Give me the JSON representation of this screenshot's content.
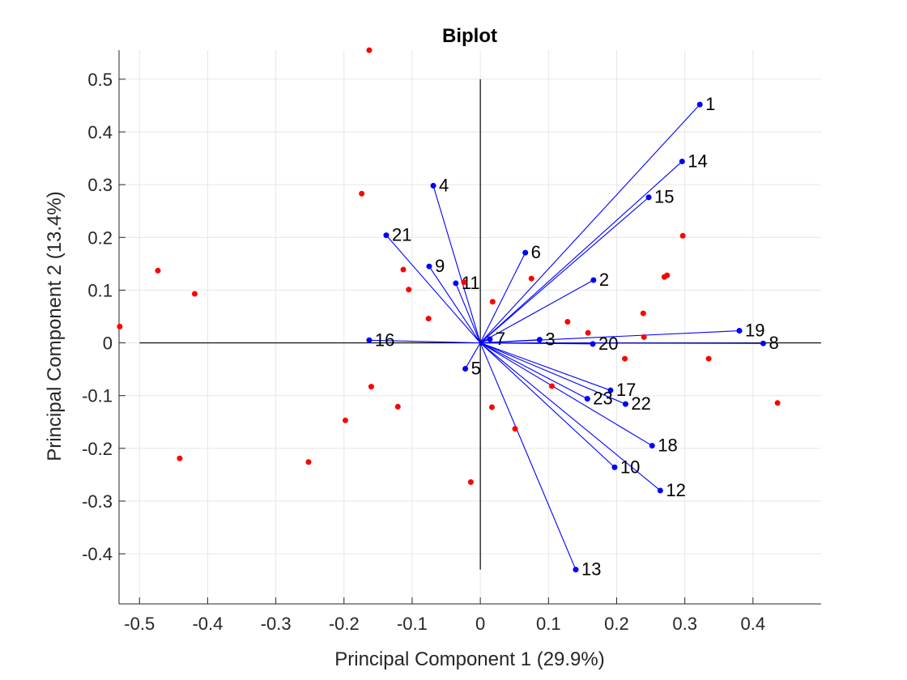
{
  "chart_data": {
    "type": "scatter",
    "title": "Biplot",
    "xlabel": "Principal Component 1 (29.9%)",
    "ylabel": "Principal Component 2 (13.4%)",
    "xlim": [
      -0.53,
      0.5
    ],
    "ylim": [
      -0.495,
      0.555
    ],
    "xticks": [
      -0.5,
      -0.4,
      -0.3,
      -0.2,
      -0.1,
      0,
      0.1,
      0.2,
      0.3,
      0.4
    ],
    "yticks": [
      -0.4,
      -0.3,
      -0.2,
      -0.1,
      0,
      0.1,
      0.2,
      0.3,
      0.4,
      0.5
    ],
    "xtick_labels": [
      "-0.5",
      "-0.4",
      "-0.3",
      "-0.2",
      "-0.1",
      "0",
      "0.1",
      "0.2",
      "0.3",
      "0.4"
    ],
    "ytick_labels": [
      "-0.4",
      "-0.3",
      "-0.2",
      "-0.1",
      "0",
      "0.1",
      "0.2",
      "0.3",
      "0.4",
      "0.5"
    ],
    "grid": true,
    "axis_lines": {
      "x": [
        -0.5,
        0.5
      ],
      "y": [
        -0.43,
        0.5
      ]
    },
    "loadings": [
      {
        "label": "1",
        "x": 0.322,
        "y": 0.452
      },
      {
        "label": "2",
        "x": 0.166,
        "y": 0.119
      },
      {
        "label": "3",
        "x": 0.087,
        "y": 0.006
      },
      {
        "label": "4",
        "x": -0.069,
        "y": 0.298
      },
      {
        "label": "5",
        "x": -0.022,
        "y": -0.049
      },
      {
        "label": "6",
        "x": 0.066,
        "y": 0.171
      },
      {
        "label": "7",
        "x": 0.014,
        "y": 0.007
      },
      {
        "label": "8",
        "x": 0.415,
        "y": -0.001
      },
      {
        "label": "9",
        "x": -0.075,
        "y": 0.145
      },
      {
        "label": "10",
        "x": 0.197,
        "y": -0.236
      },
      {
        "label": "11",
        "x": -0.036,
        "y": 0.113
      },
      {
        "label": "12",
        "x": 0.264,
        "y": -0.28
      },
      {
        "label": "13",
        "x": 0.14,
        "y": -0.43
      },
      {
        "label": "14",
        "x": 0.296,
        "y": 0.344
      },
      {
        "label": "15",
        "x": 0.247,
        "y": 0.276
      },
      {
        "label": "16",
        "x": -0.163,
        "y": 0.005
      },
      {
        "label": "17",
        "x": 0.191,
        "y": -0.09
      },
      {
        "label": "18",
        "x": 0.252,
        "y": -0.195
      },
      {
        "label": "19",
        "x": 0.38,
        "y": 0.023
      },
      {
        "label": "20",
        "x": 0.165,
        "y": -0.002
      },
      {
        "label": "21",
        "x": -0.138,
        "y": 0.204
      },
      {
        "label": "22",
        "x": 0.213,
        "y": -0.116
      },
      {
        "label": "23",
        "x": 0.157,
        "y": -0.106
      }
    ],
    "scores": [
      {
        "x": -0.163,
        "y": 0.555
      },
      {
        "x": -0.174,
        "y": 0.283
      },
      {
        "x": -0.473,
        "y": 0.137
      },
      {
        "x": -0.419,
        "y": 0.093
      },
      {
        "x": -0.529,
        "y": 0.031
      },
      {
        "x": -0.441,
        "y": -0.219
      },
      {
        "x": -0.252,
        "y": -0.226
      },
      {
        "x": -0.198,
        "y": -0.147
      },
      {
        "x": -0.16,
        "y": -0.083
      },
      {
        "x": -0.121,
        "y": -0.121
      },
      {
        "x": -0.113,
        "y": 0.139
      },
      {
        "x": -0.105,
        "y": 0.101
      },
      {
        "x": -0.076,
        "y": 0.046
      },
      {
        "x": -0.024,
        "y": 0.115
      },
      {
        "x": 0.018,
        "y": 0.078
      },
      {
        "x": 0.075,
        "y": 0.122
      },
      {
        "x": 0.128,
        "y": 0.04
      },
      {
        "x": 0.158,
        "y": 0.019
      },
      {
        "x": 0.239,
        "y": 0.056
      },
      {
        "x": 0.24,
        "y": 0.011
      },
      {
        "x": 0.212,
        "y": -0.03
      },
      {
        "x": 0.27,
        "y": 0.125
      },
      {
        "x": 0.274,
        "y": 0.128
      },
      {
        "x": 0.297,
        "y": 0.203
      },
      {
        "x": 0.335,
        "y": -0.03
      },
      {
        "x": 0.436,
        "y": -0.114
      },
      {
        "x": 0.105,
        "y": -0.082
      },
      {
        "x": 0.017,
        "y": -0.122
      },
      {
        "x": 0.051,
        "y": -0.163
      },
      {
        "x": -0.014,
        "y": -0.264
      }
    ],
    "colors": {
      "loading_line": "#0000ff",
      "loading_marker": "#0000ff",
      "score_marker": "#ff0000",
      "axis_line": "#000000",
      "grid": "#e6e6e6",
      "frame": "#262626"
    }
  }
}
